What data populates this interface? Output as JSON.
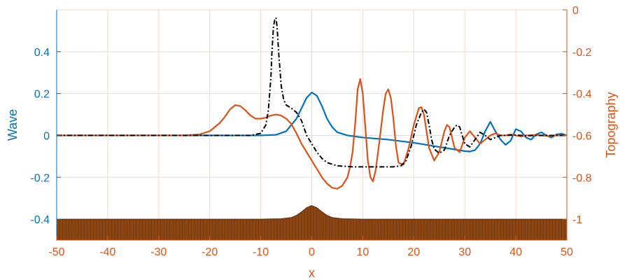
{
  "chart_data": {
    "type": "line",
    "xlabel": "x",
    "ylabel_left": "Wave",
    "ylabel_right": "Topography",
    "xlim": [
      -50,
      50
    ],
    "ylim_left": [
      -0.5,
      0.6
    ],
    "ylim_right": [
      -1.1,
      0
    ],
    "grid": true,
    "x_ticks": [
      "-50",
      "-40",
      "-30",
      "-20",
      "-10",
      "0",
      "10",
      "20",
      "30",
      "40",
      "50"
    ],
    "y_ticks_left": [
      "-0.4",
      "-0.2",
      "0",
      "0.2",
      "0.4"
    ],
    "y_ticks_right": [
      "0",
      "-0.2",
      "-0.4",
      "-0.6",
      "-0.8",
      "-1"
    ],
    "colors": {
      "left_axis": "#0072BD",
      "right_axis": "#D95319",
      "wave": "#0072BD",
      "orange": "#D95319",
      "dashdot": "#000000",
      "topography_fill": "#8B4513",
      "grid": "#f2d9cf"
    },
    "series": [
      {
        "axis": "left",
        "color": "#0072BD",
        "style": "solid",
        "x": [
          -50,
          -20,
          -10,
          -7,
          -5,
          -3,
          -2,
          -1,
          0,
          1,
          2,
          3,
          4,
          5,
          7,
          10,
          15,
          20,
          25,
          30,
          31,
          32,
          33,
          34,
          35,
          36,
          37,
          38,
          39,
          40,
          41,
          42,
          43,
          44,
          45,
          46,
          47,
          48,
          49,
          50
        ],
        "y": [
          0,
          0,
          0,
          0.003,
          0.02,
          0.08,
          0.13,
          0.18,
          0.205,
          0.19,
          0.14,
          0.08,
          0.04,
          0.015,
          0,
          -0.01,
          -0.02,
          -0.035,
          -0.055,
          -0.075,
          -0.077,
          -0.07,
          -0.04,
          0.02,
          0.065,
          0.02,
          -0.02,
          -0.045,
          -0.025,
          0.03,
          0.02,
          -0.01,
          -0.02,
          0.005,
          0.015,
          0,
          -0.01,
          0.005,
          0.008,
          0
        ]
      },
      {
        "axis": "right",
        "color": "#D95319",
        "style": "solid",
        "x": [
          -50,
          -25,
          -22,
          -20,
          -18,
          -17,
          -16,
          -15,
          -14,
          -13,
          -12,
          -11,
          -10,
          -9,
          -8,
          -7,
          -6,
          -5,
          -4,
          -3,
          -2,
          -1,
          0,
          1,
          2,
          3,
          4,
          5,
          6,
          7,
          7.5,
          8,
          8.5,
          9,
          9.5,
          10,
          10.5,
          11,
          11.5,
          12,
          12.5,
          13,
          14,
          14.5,
          15,
          15.5,
          16,
          16.5,
          17,
          18,
          19,
          20,
          21,
          21.5,
          22,
          22.5,
          23,
          24,
          25,
          26,
          26.5,
          27,
          27.5,
          28,
          29,
          30,
          31,
          32,
          33,
          34,
          35,
          36,
          37,
          38,
          39,
          40,
          41,
          42,
          44,
          46,
          48,
          50
        ],
        "y": [
          -0.6,
          -0.6,
          -0.595,
          -0.58,
          -0.54,
          -0.51,
          -0.475,
          -0.455,
          -0.46,
          -0.48,
          -0.505,
          -0.52,
          -0.52,
          -0.515,
          -0.505,
          -0.5,
          -0.505,
          -0.52,
          -0.545,
          -0.59,
          -0.64,
          -0.68,
          -0.72,
          -0.76,
          -0.8,
          -0.83,
          -0.85,
          -0.855,
          -0.84,
          -0.8,
          -0.75,
          -0.68,
          -0.55,
          -0.38,
          -0.33,
          -0.4,
          -0.56,
          -0.72,
          -0.8,
          -0.82,
          -0.77,
          -0.68,
          -0.48,
          -0.4,
          -0.38,
          -0.42,
          -0.52,
          -0.65,
          -0.73,
          -0.74,
          -0.66,
          -0.55,
          -0.47,
          -0.465,
          -0.5,
          -0.58,
          -0.66,
          -0.72,
          -0.68,
          -0.58,
          -0.55,
          -0.56,
          -0.61,
          -0.66,
          -0.68,
          -0.61,
          -0.58,
          -0.61,
          -0.64,
          -0.62,
          -0.6,
          -0.59,
          -0.6,
          -0.6,
          -0.595,
          -0.6,
          -0.605,
          -0.6,
          -0.598,
          -0.602,
          -0.6,
          -0.6
        ]
      },
      {
        "axis": "right",
        "color": "#000000",
        "style": "dashdot",
        "x": [
          -50,
          -20,
          -12,
          -10,
          -9,
          -8.5,
          -8,
          -7.8,
          -7.5,
          -7.2,
          -7,
          -6.8,
          -6.5,
          -6,
          -5.5,
          -5,
          -4,
          -3,
          -2,
          -1,
          0,
          1,
          2,
          3,
          5,
          8,
          12,
          16,
          17.5,
          18.5,
          19.5,
          20.5,
          21.5,
          22,
          22.5,
          23,
          23.5,
          24,
          25,
          26,
          27,
          28,
          28.5,
          29,
          29.5,
          30,
          31,
          32,
          33,
          34,
          35,
          36,
          37,
          38,
          40,
          42,
          44,
          46,
          48,
          50
        ],
        "y": [
          -0.6,
          -0.6,
          -0.6,
          -0.59,
          -0.55,
          -0.48,
          -0.32,
          -0.2,
          -0.08,
          -0.04,
          -0.04,
          -0.08,
          -0.2,
          -0.36,
          -0.43,
          -0.455,
          -0.47,
          -0.49,
          -0.53,
          -0.6,
          -0.64,
          -0.68,
          -0.71,
          -0.73,
          -0.745,
          -0.75,
          -0.75,
          -0.75,
          -0.745,
          -0.72,
          -0.65,
          -0.55,
          -0.49,
          -0.475,
          -0.49,
          -0.55,
          -0.62,
          -0.665,
          -0.685,
          -0.67,
          -0.6,
          -0.56,
          -0.55,
          -0.56,
          -0.6,
          -0.64,
          -0.655,
          -0.62,
          -0.585,
          -0.6,
          -0.62,
          -0.61,
          -0.6,
          -0.6,
          -0.598,
          -0.602,
          -0.6,
          -0.6,
          -0.6,
          -0.6
        ]
      },
      {
        "axis": "right",
        "color": "#8B4513",
        "style": "filled-bottom",
        "name_in_plot": "",
        "x": [
          -50,
          -10,
          -6,
          -4,
          -3,
          -2,
          -1,
          0,
          1,
          2,
          3,
          4,
          6,
          10,
          50
        ],
        "y": [
          -1,
          -1,
          -0.998,
          -0.992,
          -0.982,
          -0.965,
          -0.945,
          -0.935,
          -0.945,
          -0.965,
          -0.982,
          -0.992,
          -0.998,
          -1,
          -1
        ]
      }
    ]
  }
}
